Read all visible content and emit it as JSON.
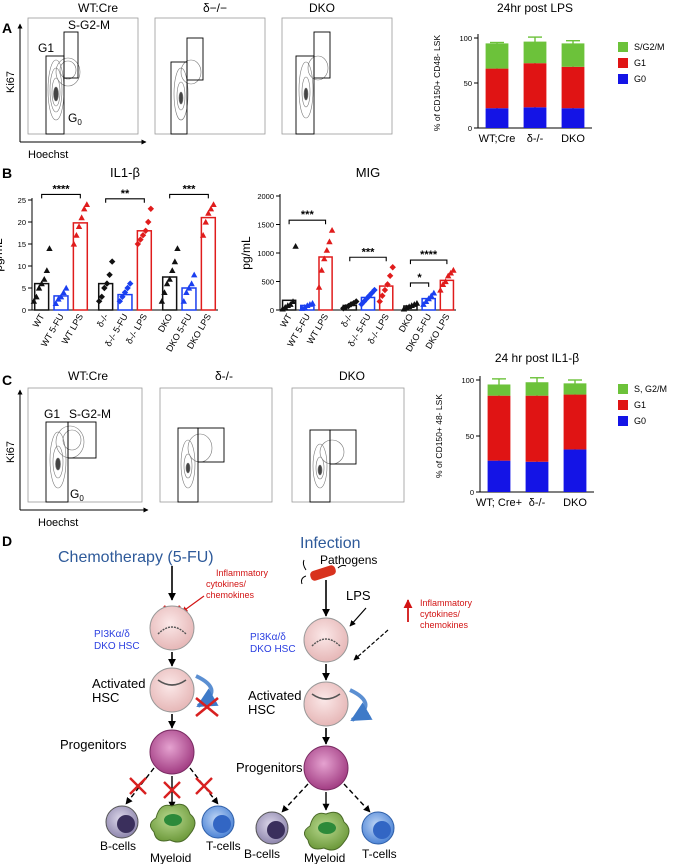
{
  "panel_labels": {
    "a": "A",
    "b": "B",
    "c": "C",
    "d": "D"
  },
  "flow_panels": {
    "a": {
      "titles": [
        "WT:Cre",
        "δ−/−",
        "DKO"
      ],
      "ylabel": "Ki67",
      "xlabel": "Hoechst",
      "gates": {
        "g1": "G1",
        "sg2m": "S-G2-M",
        "g0": "G",
        "g0_sub": "0"
      }
    },
    "c": {
      "titles": [
        "WT:Cre",
        "δ-/-",
        "DKO"
      ],
      "ylabel": "Ki67",
      "xlabel": "Hoechst",
      "gates": {
        "g1": "G1",
        "sg2m": "S-G2-M",
        "g0": "G",
        "g0_sub": "0"
      }
    }
  },
  "colors": {
    "g0": "#1414e6",
    "g1": "#e01414",
    "sg2m": "#6cc23a",
    "wt_series": "#111111",
    "fu_series": "#1a3ff0",
    "lps_series": "#e01c1c",
    "diagram_blue": "#2e5a9a"
  },
  "chart_data": [
    {
      "type": "bar",
      "stacked": true,
      "title": "24hr post LPS",
      "ylabel": "% of CD150+ CD48- LSK",
      "categories": [
        "WT;Cre",
        "δ-/-",
        "DKO"
      ],
      "ylim": [
        0,
        100
      ],
      "yticks": [
        "0",
        "50",
        "100"
      ],
      "series": [
        {
          "name": "G0",
          "color": "#1414e6",
          "values": [
            22,
            23,
            22
          ],
          "errors": [
            4,
            5,
            6
          ]
        },
        {
          "name": "G1",
          "color": "#e01414",
          "values": [
            44,
            49,
            46
          ],
          "errors": [
            6,
            8,
            7
          ]
        },
        {
          "name": "S/G2/M",
          "color": "#6cc23a",
          "values": [
            28,
            24,
            26
          ],
          "errors": [
            1,
            5,
            3
          ]
        }
      ],
      "legend": "right"
    },
    {
      "type": "scatter",
      "title": "IL1-β",
      "ylabel": "pg/mL",
      "ylim": [
        0,
        25
      ],
      "yticks": [
        "0",
        "5",
        "10",
        "15",
        "20",
        "25"
      ],
      "categories": [
        "WT",
        "WT 5-FU",
        "WT LPS",
        "δ-/-",
        "δ-/- 5-FU",
        "δ-/- LPS",
        "DKO",
        "DKO 5-FU",
        "DKO LPS"
      ],
      "means": [
        6,
        3.2,
        19.8,
        6,
        3.5,
        18,
        7.5,
        5,
        21
      ],
      "points": [
        [
          2,
          3,
          5,
          6,
          7,
          9,
          14
        ],
        [
          1.5,
          2.5,
          3,
          4,
          5
        ],
        [
          15,
          17,
          19,
          21,
          23,
          24
        ],
        [
          2,
          3,
          5,
          6,
          8,
          11
        ],
        [
          2,
          3,
          4,
          5,
          6
        ],
        [
          15,
          16,
          17,
          18,
          20,
          23
        ],
        [
          2,
          4,
          6,
          7,
          9,
          11,
          14
        ],
        [
          2,
          4,
          5,
          6,
          8
        ],
        [
          17,
          20,
          22,
          23,
          24
        ]
      ],
      "significance": [
        {
          "from": 0,
          "to": 2,
          "label": "****"
        },
        {
          "from": 3,
          "to": 5,
          "label": "**"
        },
        {
          "from": 6,
          "to": 8,
          "label": "***"
        }
      ]
    },
    {
      "type": "scatter",
      "title": "MIG",
      "ylabel": "pg/mL",
      "ylim": [
        0,
        2000
      ],
      "yticks": [
        "0",
        "500",
        "1000",
        "1500",
        "2000"
      ],
      "categories": [
        "WT",
        "WT 5-FU",
        "WT LPS",
        "δ-/-",
        "δ-/- 5-FU",
        "δ-/- LPS",
        "DKO",
        "DKO 5-FU",
        "DKO LPS"
      ],
      "means": [
        170,
        80,
        930,
        80,
        220,
        420,
        70,
        200,
        520
      ],
      "points": [
        [
          20,
          50,
          80,
          100,
          150,
          1120
        ],
        [
          30,
          50,
          80,
          100,
          120
        ],
        [
          400,
          700,
          900,
          1050,
          1200,
          1400
        ],
        [
          30,
          50,
          70,
          100,
          120,
          150
        ],
        [
          100,
          150,
          200,
          250,
          300,
          350
        ],
        [
          150,
          250,
          350,
          450,
          600,
          750
        ],
        [
          20,
          40,
          60,
          80,
          100,
          120
        ],
        [
          100,
          150,
          200,
          250,
          300
        ],
        [
          350,
          450,
          500,
          600,
          650,
          700
        ]
      ],
      "significance": [
        {
          "from": 0,
          "to": 2,
          "label": "***"
        },
        {
          "from": 3,
          "to": 5,
          "label": "***"
        },
        {
          "from": 6,
          "to": 7,
          "label": "*"
        },
        {
          "from": 6,
          "to": 8,
          "label": "****"
        }
      ]
    },
    {
      "type": "bar",
      "stacked": true,
      "title": "24 hr post IL1-β",
      "ylabel": "% of CD150+ 48- LSK",
      "categories": [
        "WT; Cre+",
        "δ-/-",
        "DKO"
      ],
      "ylim": [
        0,
        100
      ],
      "yticks": [
        "0",
        "50",
        "100"
      ],
      "series": [
        {
          "name": "G0",
          "color": "#1414e6",
          "values": [
            28,
            27,
            38
          ],
          "errors": [
            3,
            2,
            7
          ]
        },
        {
          "name": "G1",
          "color": "#e01414",
          "values": [
            58,
            59,
            49
          ],
          "errors": [
            4,
            3,
            2
          ]
        },
        {
          "name": "S, G2/M",
          "color": "#6cc23a",
          "values": [
            10,
            12,
            10
          ],
          "errors": [
            5,
            4,
            3
          ]
        }
      ],
      "legend": "right"
    }
  ],
  "diagram": {
    "left": {
      "title": "Chemotherapy (5-FU)",
      "inhibit": [
        "Inflammatory",
        "cytokines/",
        "chemokines"
      ],
      "hsc": [
        "PI3Kα/δ",
        "DKO HSC"
      ],
      "activated": [
        "Activated",
        "HSC"
      ],
      "progenitors": "Progenitors",
      "outputs": [
        "B-cells",
        "Myeloid",
        "T-cells"
      ]
    },
    "right": {
      "title": "Infection",
      "pathogens": "Pathogens",
      "lps": "LPS",
      "inflam": [
        "Inflammatory",
        "cytokines/",
        "chemokines"
      ],
      "hsc": [
        "PI3Kα/δ",
        "DKO HSC"
      ],
      "activated": [
        "Activated",
        "HSC"
      ],
      "progenitors": "Progenitors",
      "outputs": [
        "B-cells",
        "Myeloid",
        "T-cells"
      ]
    }
  }
}
